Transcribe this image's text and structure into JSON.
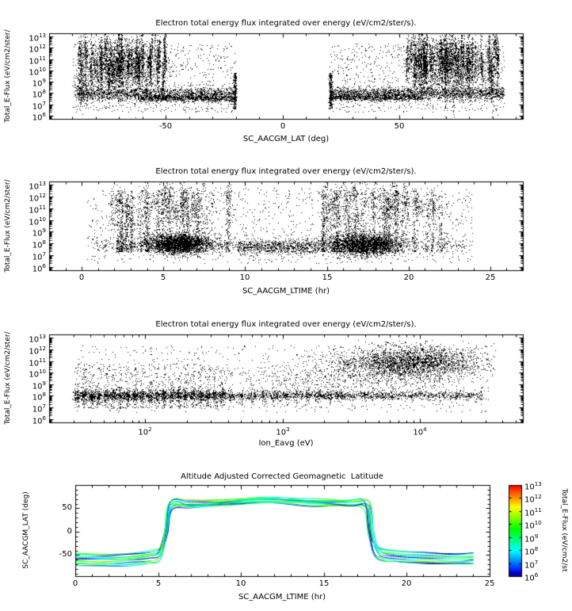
{
  "page": {
    "background": "#ffffff",
    "marker_color": "#000000"
  },
  "chart_data": [
    {
      "id": "electron-flux-vs-lat",
      "type": "scatter",
      "title": "Electron total energy flux integrated over energy (eV/cm2/ster/s).",
      "xlabel": "SC_AACGM_LAT (deg)",
      "ylabel": "Total_E-Flux (eV/cm2/ster/",
      "xlim": [
        -100,
        103
      ],
      "xticks": [
        -50,
        0,
        50
      ],
      "x_minor_step": 10,
      "yscale": "log",
      "ylim_log": [
        5.7,
        13.3
      ],
      "ytick_decades": [
        6,
        7,
        8,
        9,
        10,
        11,
        12,
        13
      ],
      "marker_color": "#000000",
      "clusters": [
        {
          "kind": "vstreaks",
          "count": 70,
          "x": [
            -88,
            -50
          ],
          "yc": [
            10.8,
            0.85
          ],
          "yh": [
            1.2,
            3.2
          ],
          "xsd": 0.22,
          "per": 45
        },
        {
          "kind": "gauss",
          "n": 1500,
          "x": [
            -69,
            8
          ],
          "y": [
            10.6,
            1.2
          ],
          "clip_x": [
            -90,
            -45
          ],
          "clip_y": [
            6.3,
            12.9
          ]
        },
        {
          "kind": "vstreaks",
          "count": 80,
          "x": [
            52,
            93
          ],
          "yc": [
            10.9,
            0.85
          ],
          "yh": [
            1.2,
            3.2
          ],
          "xsd": 0.22,
          "per": 45
        },
        {
          "kind": "gauss",
          "n": 1600,
          "x": [
            72,
            9
          ],
          "y": [
            10.7,
            1.2
          ],
          "clip_x": [
            50,
            95
          ],
          "clip_y": [
            6.3,
            12.9
          ]
        },
        {
          "kind": "hband",
          "n": 1500,
          "x": [
            -88,
            -20
          ],
          "y": [
            7.95,
            0.3
          ]
        },
        {
          "kind": "hband",
          "n": 800,
          "x": [
            -62,
            -20
          ],
          "y": [
            7.55,
            0.14
          ]
        },
        {
          "kind": "hband",
          "n": 1800,
          "x": [
            20,
            95
          ],
          "y": [
            8.0,
            0.28
          ]
        },
        {
          "kind": "hband",
          "n": 700,
          "x": [
            20,
            60
          ],
          "y": [
            7.6,
            0.14
          ]
        },
        {
          "kind": "uniform",
          "n": 700,
          "x": [
            -90,
            -20
          ],
          "y": [
            6.3,
            12.4
          ]
        },
        {
          "kind": "uniform",
          "n": 800,
          "x": [
            20,
            95
          ],
          "y": [
            6.3,
            12.4
          ]
        },
        {
          "kind": "vstripe",
          "n": 240,
          "x": [
            -20.5,
            0.35
          ],
          "y": [
            6.6,
            9.8
          ]
        },
        {
          "kind": "vstripe",
          "n": 240,
          "x": [
            20.5,
            0.35
          ],
          "y": [
            6.6,
            9.8
          ]
        },
        {
          "kind": "gauss",
          "n": 220,
          "x": [
            -86,
            2.2
          ],
          "y": [
            8.3,
            0.8
          ],
          "clip_x": [
            -90,
            -80
          ],
          "clip_y": [
            6.5,
            10
          ]
        }
      ]
    },
    {
      "id": "electron-flux-vs-ltime",
      "type": "scatter",
      "title": "Electron total energy flux integrated over energy (eV/cm2/ster/s).",
      "xlabel": "SC_AACGM_LTIME (hr)",
      "ylabel": "Total_E-Flux (eV/cm2/ster/",
      "xlim": [
        -2,
        27
      ],
      "xticks": [
        0,
        5,
        10,
        15,
        20,
        25
      ],
      "x_minor_step": 1,
      "yscale": "log",
      "ylim_log": [
        5.7,
        13.3
      ],
      "ytick_decades": [
        6,
        7,
        8,
        9,
        10,
        11,
        12,
        13
      ],
      "marker_color": "#000000",
      "clusters": [
        {
          "kind": "streaks",
          "count": 26,
          "x": [
            1.2,
            9.3
          ],
          "y": [
            7.3,
            12.6
          ],
          "sd": 0.06,
          "per": 55
        },
        {
          "kind": "streaks",
          "count": 26,
          "x": [
            14.6,
            22.3
          ],
          "y": [
            7.3,
            12.6
          ],
          "sd": 0.06,
          "per": 55
        },
        {
          "kind": "vstreaks",
          "count": 40,
          "x": [
            1.5,
            9.0
          ],
          "yc": [
            11.2,
            0.8
          ],
          "yh": [
            0.8,
            2.4
          ],
          "xsd": 0.1,
          "per": 25
        },
        {
          "kind": "vstreaks",
          "count": 40,
          "x": [
            14.8,
            22.0
          ],
          "yc": [
            11.2,
            0.8
          ],
          "yh": [
            0.8,
            2.4
          ],
          "xsd": 0.1,
          "per": 25
        },
        {
          "kind": "gauss",
          "n": 2600,
          "x": [
            5.9,
            1.0
          ],
          "y": [
            8.0,
            0.42
          ],
          "clip_y": [
            6.8,
            9.4
          ]
        },
        {
          "kind": "gauss",
          "n": 2400,
          "x": [
            17.2,
            1.1
          ],
          "y": [
            7.9,
            0.48
          ],
          "clip_y": [
            6.6,
            9.4
          ]
        },
        {
          "kind": "hband",
          "n": 600,
          "x": [
            9.5,
            14.6
          ],
          "y": [
            7.7,
            0.3
          ]
        },
        {
          "kind": "hband",
          "n": 900,
          "x": [
            0.8,
            23.5
          ],
          "y": [
            7.9,
            0.32
          ]
        },
        {
          "kind": "uniform",
          "n": 1300,
          "x": [
            0.3,
            23.9
          ],
          "y": [
            6.3,
            12.8
          ]
        }
      ]
    },
    {
      "id": "electron-flux-vs-ion-eavg",
      "type": "scatter",
      "title": "Electron total energy flux integrated over energy (eV/cm2/ster/s).",
      "xlabel": "Ion_Eavg (eV)",
      "ylabel": "Total_E-Flux (eV/cm2/ster/",
      "xscale": "log",
      "xlim_log": [
        1.3,
        4.75
      ],
      "xtick_decades": [
        2,
        3,
        4
      ],
      "yscale": "log",
      "ylim_log": [
        5.7,
        13.3
      ],
      "ytick_decades": [
        6,
        7,
        8,
        9,
        10,
        11,
        12,
        13
      ],
      "marker_color": "#000000",
      "clusters": [
        {
          "kind": "stripes",
          "from": 1.5,
          "to": 2.56,
          "step": 0.053,
          "y": [
            6.95,
            10.8
          ],
          "per": 46,
          "knot": [
            8.05,
            0.28
          ],
          "knot_per": 60,
          "xsd": 0.012
        },
        {
          "kind": "stripes",
          "from": 2.62,
          "to": 3.42,
          "step": 0.08,
          "y": [
            7.0,
            10.2
          ],
          "per": 16,
          "knot": [
            8.0,
            0.25
          ],
          "knot_per": 22,
          "xsd": 0.012
        },
        {
          "kind": "hband",
          "n": 2200,
          "x": [
            1.5,
            4.45
          ],
          "y": [
            8.05,
            0.2
          ]
        },
        {
          "kind": "gauss",
          "n": 2600,
          "x": [
            3.95,
            0.27
          ],
          "y": [
            10.9,
            0.72
          ],
          "clip_x": [
            3.1,
            4.55
          ],
          "clip_y": [
            8.6,
            12.8
          ]
        },
        {
          "kind": "gauss",
          "n": 500,
          "x": [
            3.55,
            0.4
          ],
          "y": [
            9.7,
            0.8
          ],
          "clip_x": [
            2.8,
            4.3
          ],
          "clip_y": [
            8,
            12
          ]
        },
        {
          "kind": "uniform",
          "n": 800,
          "x": [
            1.5,
            4.5
          ],
          "y": [
            6.6,
            12.4
          ]
        }
      ]
    },
    {
      "id": "aacgm-lat-vs-ltime",
      "type": "line",
      "title": "Altitude Adjusted Corrected Geomagnetic  Latitude",
      "xlabel": "SC_AACGM_LTIME (hr)",
      "ylabel": "SC_AACGM_LAT (deg)",
      "xlim": [
        0,
        25
      ],
      "xticks": [
        0,
        5,
        10,
        15,
        20,
        25
      ],
      "x_minor_step": 1,
      "ylim": [
        -95,
        100
      ],
      "yticks": [
        -50,
        0,
        50
      ],
      "y_minor_step": 10,
      "orbits": {
        "count": 13,
        "dawn_lt": 5.5,
        "dusk_lt": 17.8,
        "south_lat_start": -44,
        "lat_spacing": 2.3,
        "top_lat_min": 58,
        "top_lat_max": 84
      },
      "colorbar": {
        "label": "Total_E-Flux (eV/cm2/st",
        "scale": "log",
        "tick_decades": [
          6,
          7,
          8,
          9,
          10,
          11,
          12,
          13
        ],
        "range_log": [
          6,
          13
        ],
        "colormap": "rainbow"
      }
    }
  ]
}
